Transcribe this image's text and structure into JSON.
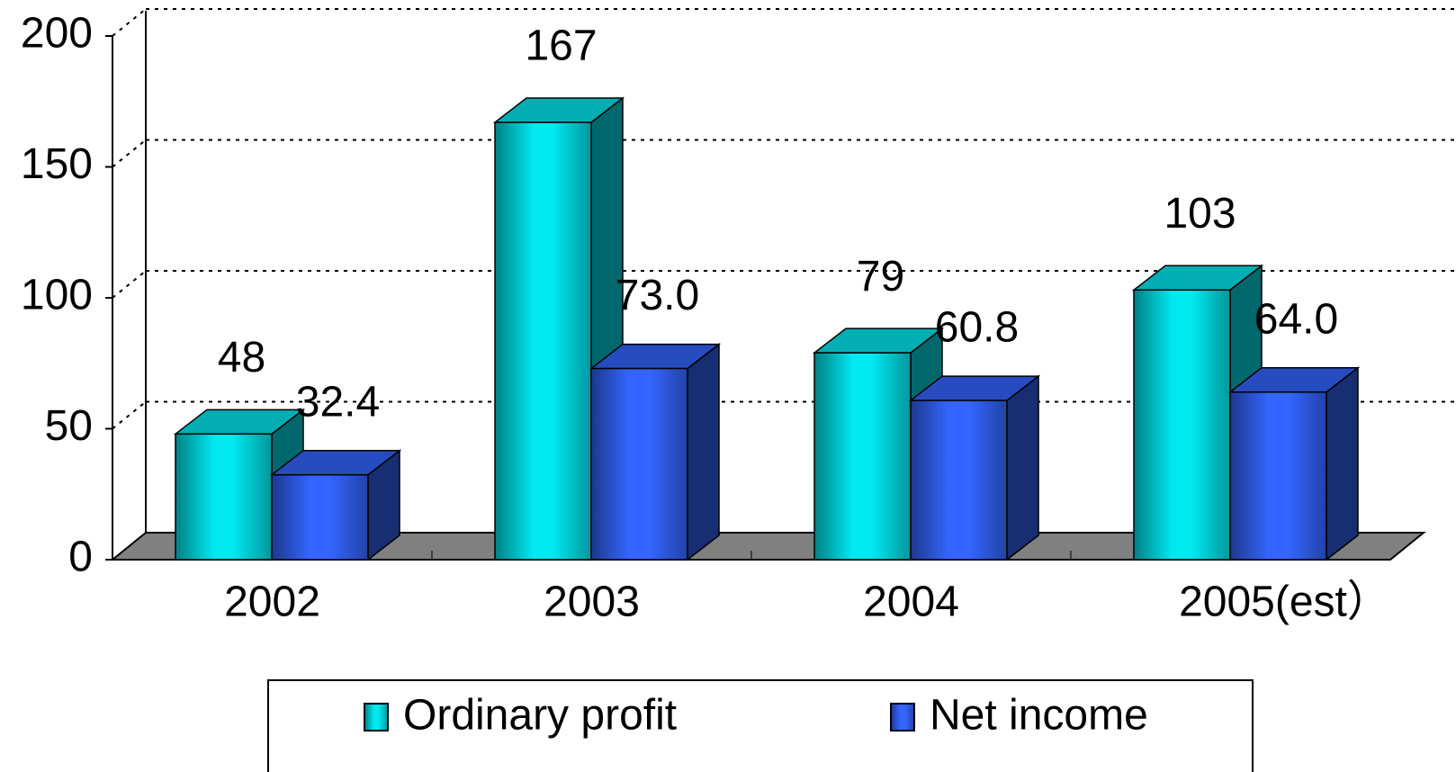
{
  "chart_data": {
    "type": "bar3d",
    "categories": [
      "2002",
      "2003",
      "2004",
      "2005(est）"
    ],
    "series": [
      {
        "name": "Ordinary profit",
        "color": "#00e8f0",
        "values": [
          48,
          167,
          79,
          103
        ]
      },
      {
        "name": "Net income",
        "color": "#3366ff",
        "values": [
          32.4,
          73.0,
          60.8,
          64.0
        ],
        "value_labels": [
          "32.4",
          "73.0",
          "60.8",
          "64.0"
        ]
      }
    ],
    "ylim": [
      0,
      200
    ],
    "yticks": [
      0,
      50,
      100,
      150,
      200
    ],
    "grid": true
  }
}
